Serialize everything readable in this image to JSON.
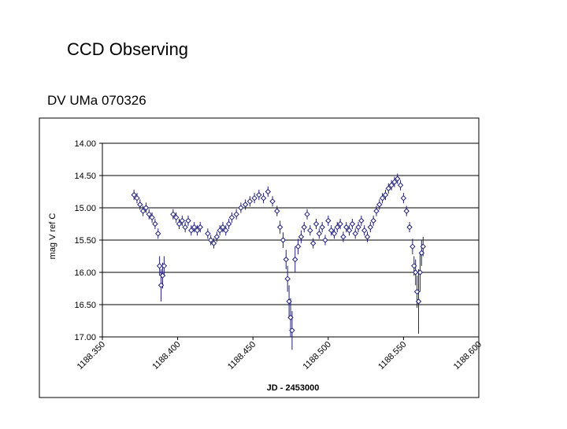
{
  "header": {
    "title": "CCD Observing",
    "subtitle": "DV UMa 070326"
  },
  "chart_data": {
    "type": "scatter",
    "x_label": "JD - 2453000",
    "y_label": "mag V ref C",
    "xlim": [
      1188.35,
      1188.6
    ],
    "xticks": [
      {
        "value": 1188.35,
        "label": "1188.350"
      },
      {
        "value": 1188.4,
        "label": "1188.400"
      },
      {
        "value": 1188.45,
        "label": "1188.450"
      },
      {
        "value": 1188.5,
        "label": "1188.500"
      },
      {
        "value": 1188.55,
        "label": "1188.550"
      },
      {
        "value": 1188.6,
        "label": "1188.600"
      }
    ],
    "ylim": [
      14,
      17
    ],
    "y_inverted": true,
    "yticks": [
      {
        "value": 14,
        "label": "14.00"
      },
      {
        "value": 14.5,
        "label": "14.50"
      },
      {
        "value": 15,
        "label": "15.00"
      },
      {
        "value": 15.5,
        "label": "15.50"
      },
      {
        "value": 16,
        "label": "16.00"
      },
      {
        "value": 16.5,
        "label": "16.50"
      },
      {
        "value": 17,
        "label": "17.00"
      }
    ],
    "grid": true,
    "color": "#1f1f7a",
    "x": [
      1188.371,
      1188.373,
      1188.375,
      1188.377,
      1188.379,
      1188.381,
      1188.383,
      1188.385,
      1188.387,
      1188.388,
      1188.389,
      1188.39,
      1188.391,
      1188.397,
      1188.399,
      1188.401,
      1188.403,
      1188.405,
      1188.407,
      1188.409,
      1188.411,
      1188.413,
      1188.415,
      1188.42,
      1188.422,
      1188.424,
      1188.426,
      1188.428,
      1188.43,
      1188.432,
      1188.434,
      1188.436,
      1188.439,
      1188.442,
      1188.445,
      1188.448,
      1188.451,
      1188.454,
      1188.457,
      1188.46,
      1188.463,
      1188.466,
      1188.468,
      1188.47,
      1188.472,
      1188.473,
      1188.474,
      1188.475,
      1188.476,
      1188.478,
      1188.48,
      1188.482,
      1188.484,
      1188.486,
      1188.488,
      1188.49,
      1188.492,
      1188.494,
      1188.496,
      1188.498,
      1188.5,
      1188.502,
      1188.504,
      1188.506,
      1188.508,
      1188.51,
      1188.512,
      1188.514,
      1188.516,
      1188.518,
      1188.52,
      1188.522,
      1188.524,
      1188.526,
      1188.528,
      1188.53,
      1188.532,
      1188.534,
      1188.536,
      1188.538,
      1188.54,
      1188.542,
      1188.544,
      1188.546,
      1188.548,
      1188.55,
      1188.552,
      1188.554,
      1188.556,
      1188.557,
      1188.558,
      1188.559,
      1188.56,
      1188.561,
      1188.562,
      1188.563
    ],
    "values": [
      14.8,
      14.85,
      14.95,
      15.05,
      15.0,
      15.1,
      15.15,
      15.25,
      15.4,
      15.9,
      16.2,
      16.05,
      15.9,
      15.1,
      15.15,
      15.25,
      15.2,
      15.3,
      15.2,
      15.35,
      15.3,
      15.35,
      15.3,
      15.4,
      15.5,
      15.55,
      15.45,
      15.35,
      15.3,
      15.35,
      15.25,
      15.15,
      15.1,
      15.0,
      14.95,
      14.9,
      14.85,
      14.8,
      14.85,
      14.75,
      14.9,
      15.05,
      15.3,
      15.5,
      15.8,
      16.1,
      16.45,
      16.7,
      16.9,
      15.8,
      15.6,
      15.45,
      15.3,
      15.1,
      15.35,
      15.55,
      15.25,
      15.4,
      15.3,
      15.5,
      15.2,
      15.35,
      15.4,
      15.3,
      15.25,
      15.45,
      15.3,
      15.35,
      15.25,
      15.4,
      15.3,
      15.2,
      15.35,
      15.45,
      15.3,
      15.2,
      15.05,
      14.95,
      14.85,
      14.8,
      14.7,
      14.65,
      14.6,
      14.55,
      14.65,
      14.85,
      15.05,
      15.3,
      15.6,
      15.9,
      16.0,
      16.3,
      16.45,
      16.0,
      15.7,
      15.6
    ],
    "errors": [
      0.08,
      0.08,
      0.08,
      0.08,
      0.08,
      0.08,
      0.08,
      0.08,
      0.08,
      0.15,
      0.25,
      0.2,
      0.15,
      0.08,
      0.08,
      0.08,
      0.08,
      0.08,
      0.08,
      0.08,
      0.08,
      0.08,
      0.08,
      0.08,
      0.08,
      0.08,
      0.08,
      0.08,
      0.08,
      0.08,
      0.08,
      0.08,
      0.08,
      0.08,
      0.08,
      0.08,
      0.08,
      0.08,
      0.08,
      0.08,
      0.08,
      0.08,
      0.1,
      0.12,
      0.15,
      0.2,
      0.25,
      0.3,
      0.3,
      0.2,
      0.12,
      0.1,
      0.08,
      0.08,
      0.08,
      0.08,
      0.08,
      0.08,
      0.08,
      0.08,
      0.08,
      0.08,
      0.08,
      0.08,
      0.08,
      0.08,
      0.08,
      0.08,
      0.08,
      0.08,
      0.08,
      0.08,
      0.08,
      0.08,
      0.08,
      0.08,
      0.08,
      0.08,
      0.08,
      0.08,
      0.08,
      0.08,
      0.08,
      0.08,
      0.08,
      0.08,
      0.08,
      0.08,
      0.12,
      0.15,
      0.2,
      0.25,
      0.5,
      0.3,
      0.2,
      0.15
    ]
  }
}
